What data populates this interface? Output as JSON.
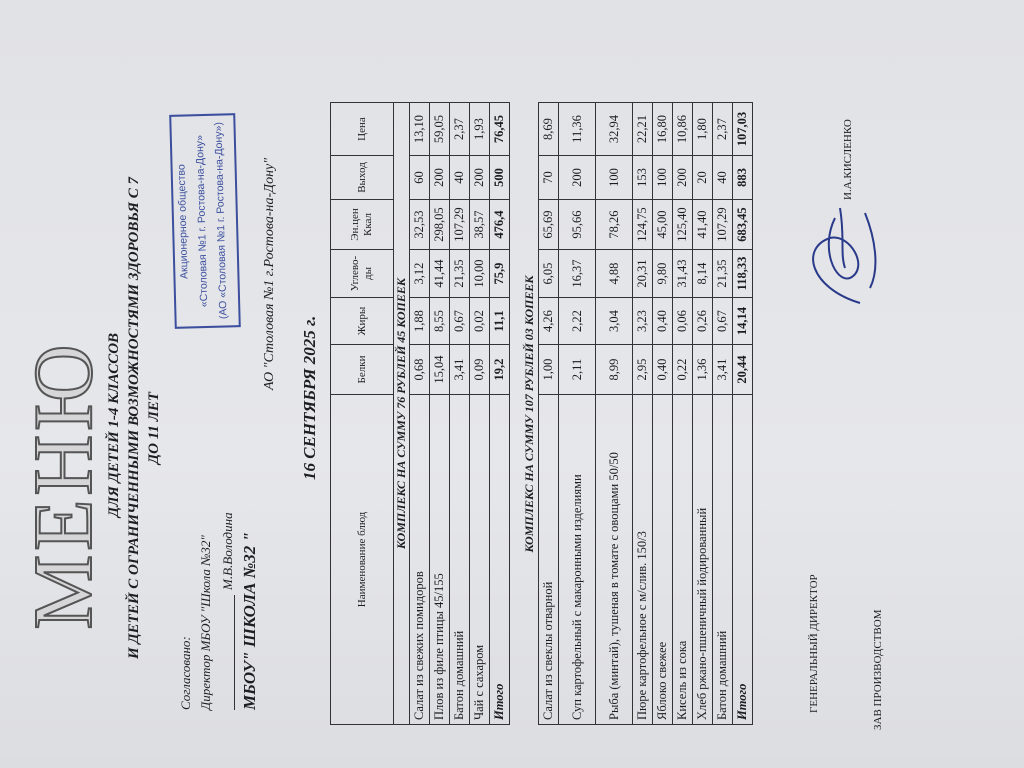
{
  "title": "МЕНЮ",
  "subtitle_lines": [
    "ДЛЯ ДЕТЕЙ 1-4 КЛАССОВ",
    "И ДЕТЕЙ С ОГРАНИЧЕННЫМИ ВОЗМОЖНОСТЯМИ ЗДОРОВЬЯ С 7",
    "ДО 11 ЛЕТ"
  ],
  "approval": {
    "label": "Согласовано:",
    "position": "Директор МБОУ \"Школа №32\"",
    "name": "М.В.Володина",
    "school": "МБОУ\" ШКОЛА №32 \""
  },
  "stamp": {
    "lines": [
      "Акционерное общество",
      "«Столовая №1 г. Ростова-на-Дону»",
      "(АО «Столовая №1 г. Ростова-на-Дону»)"
    ],
    "color": "#3c4f9e"
  },
  "company": "АО \"Столовая №1 г.Ростова-на-Дону\"",
  "date": "16  СЕНТЯБРЯ  2025 г.",
  "table": {
    "headers": [
      "Наименование блюд",
      "Белки",
      "Жиры",
      "Углево-ды",
      "Эн.цен Ккал",
      "Выход",
      "Цена"
    ]
  },
  "complexes": [
    {
      "title": "КОМПЛЕКС НА СУММУ 76 РУБЛЕЙ 45 КОПЕЕК",
      "rows": [
        [
          "Салат из свежих помидоров",
          "0,68",
          "1,88",
          "3,12",
          "32,53",
          "60",
          "13,10"
        ],
        [
          "Плов из филе птицы 45/155",
          "15,04",
          "8,55",
          "41,44",
          "298,05",
          "200",
          "59,05"
        ],
        [
          "Батон домашний",
          "3,41",
          "0,67",
          "21,35",
          "107,29",
          "40",
          "2,37"
        ],
        [
          "Чай с сахаром",
          "0,09",
          "0,02",
          "10,00",
          "38,57",
          "200",
          "1,93"
        ]
      ],
      "total": [
        "Итого",
        "19,2",
        "11,1",
        "75,9",
        "476,4",
        "500",
        "76,45"
      ]
    },
    {
      "title": "КОМПЛЕКС НА СУММУ 107 РУБЛЕЙ 03 КОПЕЕК",
      "rows": [
        [
          "Салат из свеклы отварной",
          "1,00",
          "4,26",
          "6,05",
          "65,69",
          "70",
          "8,69"
        ],
        [
          "Суп картофельный с макаронными изделиями",
          "2,11",
          "2,22",
          "16,37",
          "95,66",
          "200",
          "11,36"
        ],
        [
          "Рыба (минтай), тушеная в томате с овощами 50/50",
          "8,99",
          "3,04",
          "4,88",
          "78,26",
          "100",
          "32,94"
        ],
        [
          "Пюре картофельное с м/слив. 150/3",
          "2,95",
          "3,23",
          "20,31",
          "124,75",
          "153",
          "22,21"
        ],
        [
          "Яблоко свежее",
          "0,40",
          "0,40",
          "9,80",
          "45,00",
          "100",
          "16,80"
        ],
        [
          "Кисель из сока",
          "0,22",
          "0,06",
          "31,43",
          "125,40",
          "200",
          "10,86"
        ],
        [
          "Хлеб ржано-пшеничный йодированный",
          "1,36",
          "0,26",
          "8,14",
          "41,40",
          "20",
          "1,80"
        ],
        [
          "Батон домашний",
          "3,41",
          "0,67",
          "21,35",
          "107,29",
          "40",
          "2,37"
        ]
      ],
      "total": [
        "Итого",
        "20,44",
        "14,14",
        "118,33",
        "683,45",
        "883",
        "107,03"
      ]
    }
  ],
  "footer": {
    "director_label": "ГЕНЕРАЛЬНЫЙ ДИРЕКТОР",
    "director_name": "И.А.КИСЛЕНКО",
    "production_label": "ЗАВ ПРОИЗВОДСТВОМ"
  }
}
